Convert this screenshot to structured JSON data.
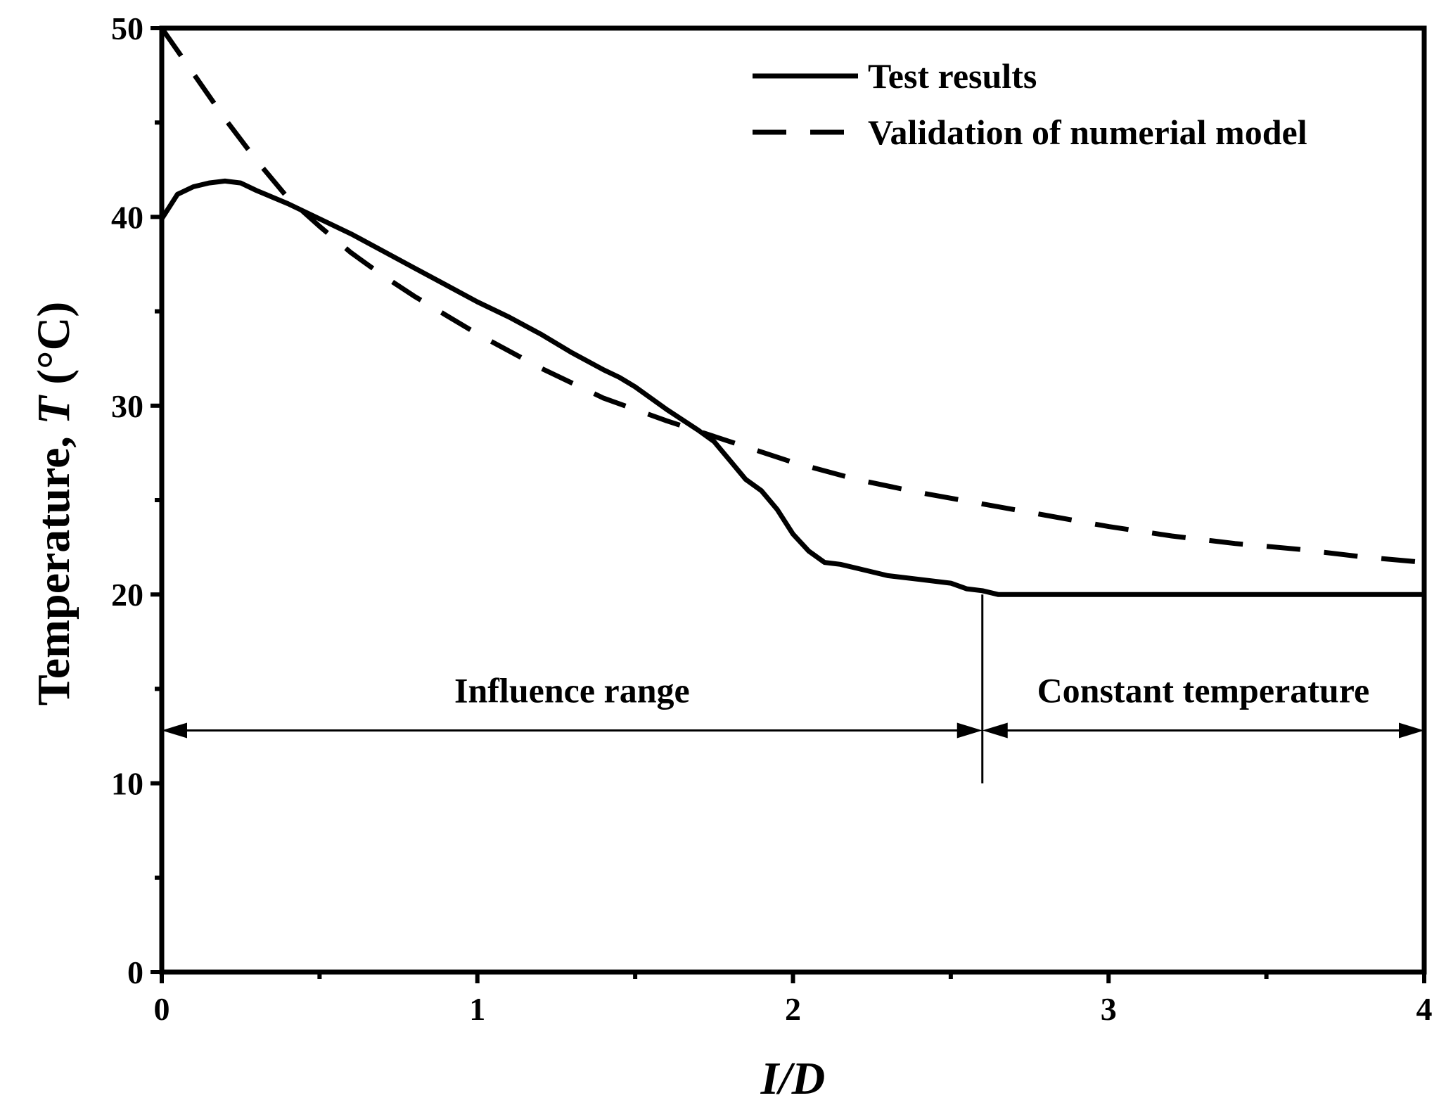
{
  "chart_data": {
    "type": "line",
    "title": "",
    "xlabel": "I/D",
    "ylabel": "Temperature, T (°C)",
    "ylabel_parts": {
      "prefix": "Temperature, ",
      "variable": "T",
      "unit": " (°C)"
    },
    "xlim": [
      0,
      4
    ],
    "ylim": [
      0,
      50
    ],
    "x_ticks": [
      0,
      1,
      2,
      3,
      4
    ],
    "y_ticks": [
      0,
      10,
      20,
      30,
      40,
      50
    ],
    "x_minor_ticks": [
      0.5,
      1.5,
      2.5,
      3.5
    ],
    "y_minor_ticks": [
      5,
      15,
      25,
      35,
      45
    ],
    "grid": false,
    "legend_position": "top-right",
    "series": [
      {
        "name": "Test results",
        "style": "solid",
        "x": [
          0,
          0.05,
          0.1,
          0.15,
          0.2,
          0.25,
          0.3,
          0.4,
          0.5,
          0.6,
          0.7,
          0.8,
          0.9,
          1.0,
          1.1,
          1.2,
          1.3,
          1.4,
          1.45,
          1.5,
          1.6,
          1.7,
          1.75,
          1.8,
          1.85,
          1.9,
          1.95,
          2.0,
          2.05,
          2.1,
          2.15,
          2.2,
          2.3,
          2.4,
          2.5,
          2.55,
          2.6,
          2.65,
          3.0,
          3.5,
          4.0
        ],
        "y": [
          39.9,
          41.2,
          41.6,
          41.8,
          41.9,
          41.8,
          41.4,
          40.7,
          39.9,
          39.1,
          38.2,
          37.3,
          36.4,
          35.5,
          34.7,
          33.8,
          32.8,
          31.9,
          31.5,
          31.0,
          29.8,
          28.7,
          28.1,
          27.1,
          26.1,
          25.5,
          24.5,
          23.2,
          22.3,
          21.7,
          21.6,
          21.4,
          21.0,
          20.8,
          20.6,
          20.3,
          20.2,
          20.0,
          20.0,
          20.0,
          20.0
        ]
      },
      {
        "name": "Validation of numerial model",
        "style": "dashed",
        "x": [
          0,
          0.1,
          0.2,
          0.3,
          0.4,
          0.5,
          0.6,
          0.7,
          0.8,
          0.9,
          1.0,
          1.2,
          1.4,
          1.6,
          1.8,
          2.0,
          2.2,
          2.4,
          2.6,
          2.8,
          3.0,
          3.2,
          3.4,
          3.6,
          3.8,
          4.0
        ],
        "y": [
          50.0,
          47.6,
          45.2,
          43.0,
          41.0,
          39.5,
          38.1,
          36.9,
          35.8,
          34.8,
          33.8,
          32.0,
          30.4,
          29.2,
          28.1,
          27.0,
          26.1,
          25.4,
          24.8,
          24.2,
          23.6,
          23.1,
          22.7,
          22.4,
          22.0,
          21.7
        ]
      }
    ],
    "annotations": [
      {
        "id": "influence",
        "text": "Influence range",
        "x_start": 0,
        "x_end": 2.6,
        "y": 12.8
      },
      {
        "id": "constant",
        "text": "Constant temperature",
        "x_start": 2.6,
        "x_end": 4,
        "y": 12.8
      }
    ],
    "divider": {
      "x": 2.6,
      "y_from": 10,
      "y_to": 20
    }
  }
}
